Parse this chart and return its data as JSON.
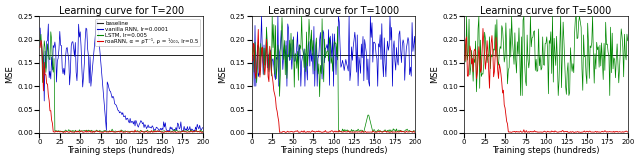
{
  "titles": [
    "Learning curve for T=200",
    "Learning curve for T=1000",
    "Learning curve for T=5000"
  ],
  "xlabel": "Training steps (hundreds)",
  "ylabel": "MSE",
  "ylim": [
    0.0,
    0.25
  ],
  "yticks": [
    0.0,
    0.05,
    0.1,
    0.15,
    0.2,
    0.25
  ],
  "xlim": [
    0,
    200
  ],
  "xticks": [
    0,
    25,
    50,
    75,
    100,
    125,
    150,
    175,
    200
  ],
  "baseline": 0.167,
  "colors": {
    "baseline": "#222222",
    "vanilla": "#0000cc",
    "lstm": "#008800",
    "roarnn": "#dd0000"
  },
  "legend_labels": [
    "baseline",
    "vanilla RNN, lr=0.0001",
    "LSTM, lr=0.005",
    "roaRNN, α = ρT⁻¹, ρ = ¹⁄₂₀₀, lr=0.5"
  ],
  "n_steps": 200
}
